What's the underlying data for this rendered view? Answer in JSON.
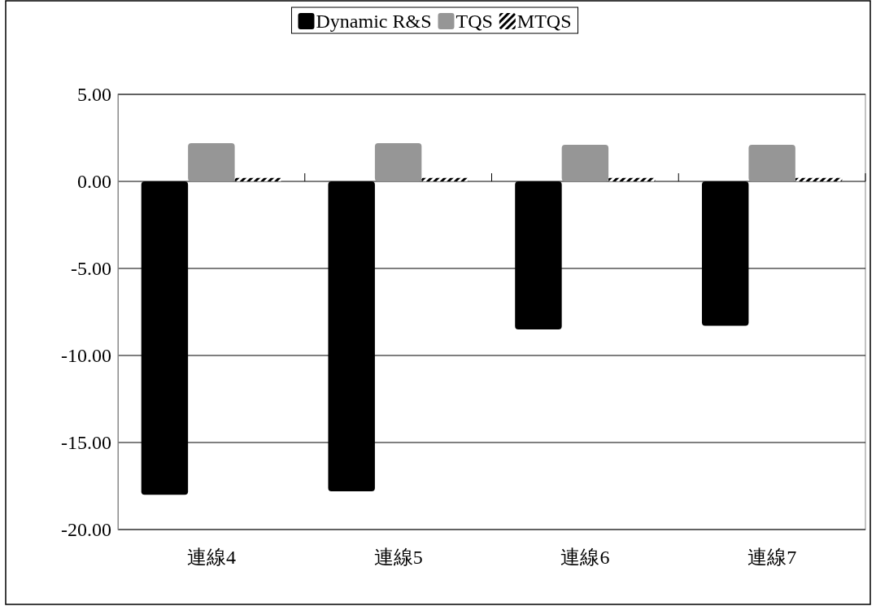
{
  "chart_data": {
    "type": "bar",
    "categories": [
      "連線4",
      "連線5",
      "連線6",
      "連線7"
    ],
    "series": [
      {
        "name": "Dynamic R&S",
        "color": "#000000",
        "values": [
          -18.0,
          -17.8,
          -8.5,
          -8.3
        ]
      },
      {
        "name": "TQS",
        "color": "#969696",
        "values": [
          2.2,
          2.2,
          2.1,
          2.1
        ]
      },
      {
        "name": "MTQS",
        "color": "#000000",
        "values": [
          0.2,
          0.2,
          0.2,
          0.2
        ]
      }
    ],
    "ylim": [
      -20,
      5
    ],
    "yticks": [
      {
        "value": -20,
        "label": "-20.00"
      },
      {
        "value": -15,
        "label": "-15.00"
      },
      {
        "value": -10,
        "label": "-10.00"
      },
      {
        "value": -5,
        "label": "-5.00"
      },
      {
        "value": 0,
        "label": "0.00"
      },
      {
        "value": 5,
        "label": "5.00"
      }
    ],
    "grid": "y",
    "legend": "top"
  }
}
